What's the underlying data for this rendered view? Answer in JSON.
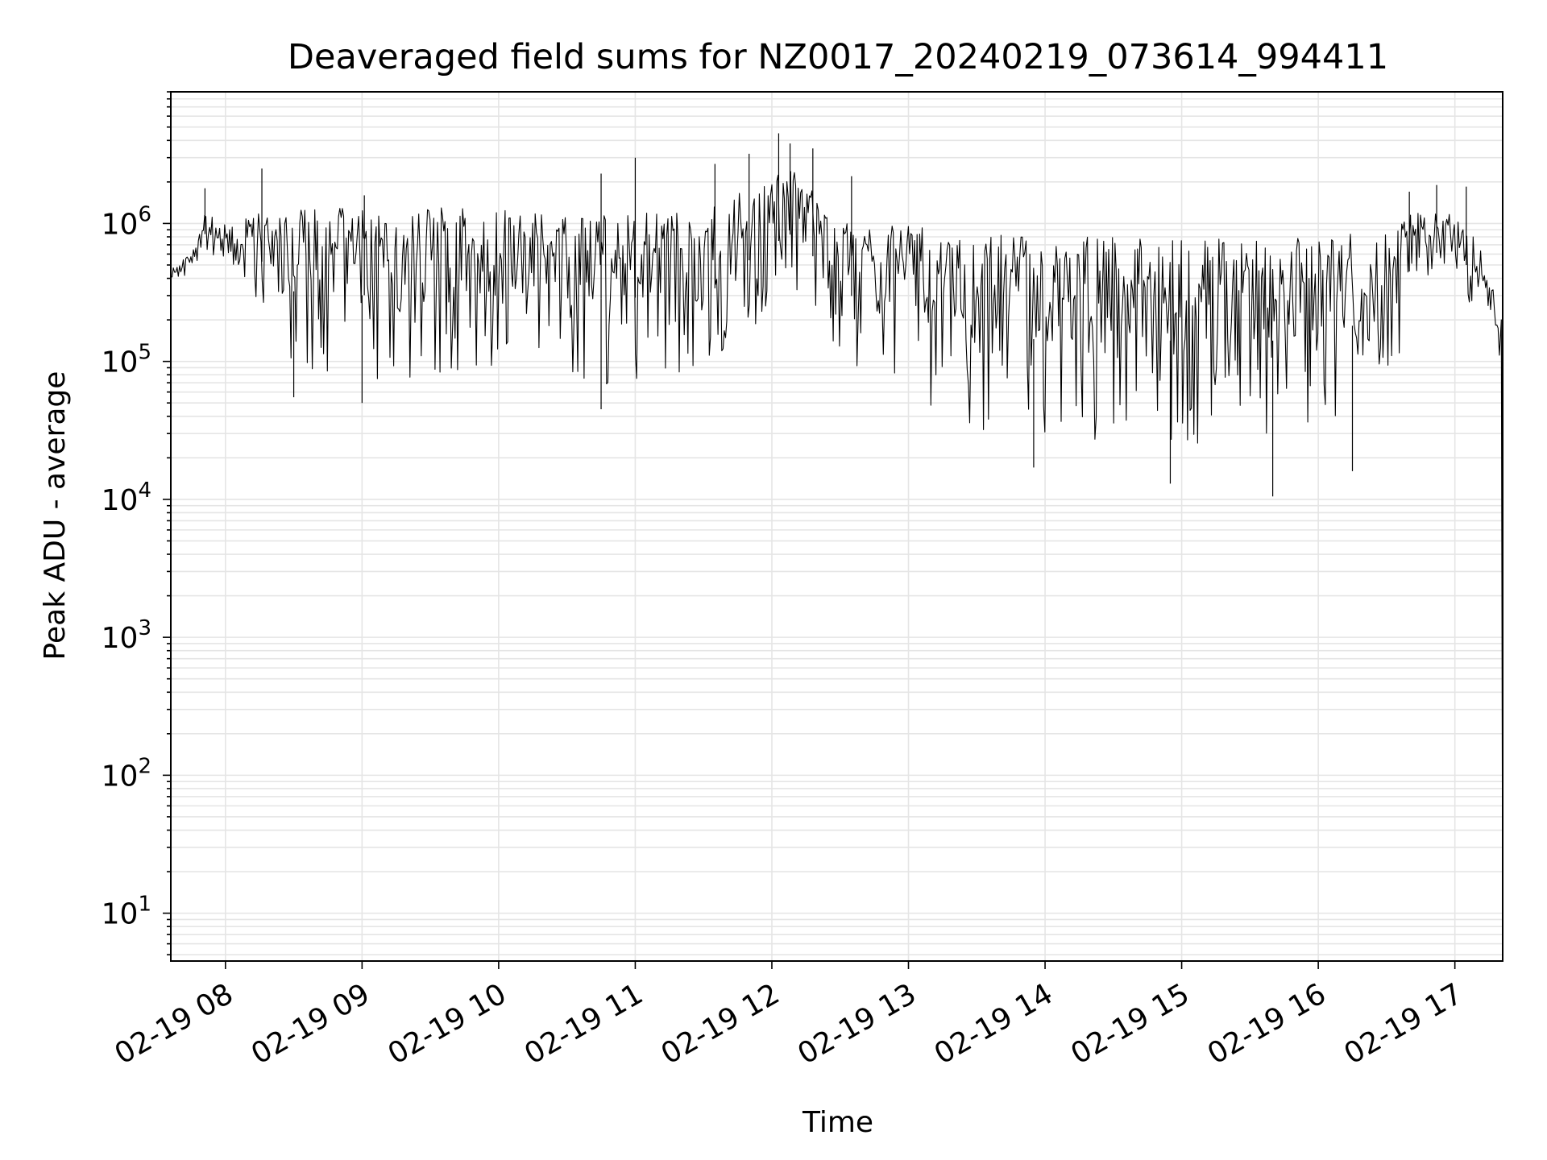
{
  "chart_data": {
    "type": "line",
    "title": "Deaveraged field sums for NZ0017_20240219_073614_994411",
    "xlabel": "Time",
    "ylabel": "Peak ADU - average",
    "yscale": "log",
    "xlim": [
      "2024-02-19 07:36",
      "2024-02-19 17:21"
    ],
    "ylim": [
      4.5,
      9000000
    ],
    "grid": true,
    "line_color": "#000000",
    "x_ticks": [
      {
        "time": "2024-02-19 08:00",
        "label": "02-19 08"
      },
      {
        "time": "2024-02-19 09:00",
        "label": "02-19 09"
      },
      {
        "time": "2024-02-19 10:00",
        "label": "02-19 10"
      },
      {
        "time": "2024-02-19 11:00",
        "label": "02-19 11"
      },
      {
        "time": "2024-02-19 12:00",
        "label": "02-19 12"
      },
      {
        "time": "2024-02-19 13:00",
        "label": "02-19 13"
      },
      {
        "time": "2024-02-19 14:00",
        "label": "02-19 14"
      },
      {
        "time": "2024-02-19 15:00",
        "label": "02-19 15"
      },
      {
        "time": "2024-02-19 16:00",
        "label": "02-19 16"
      },
      {
        "time": "2024-02-19 17:00",
        "label": "02-19 17"
      }
    ],
    "y_ticks": [
      {
        "value": 10,
        "base": "10",
        "exp": "1"
      },
      {
        "value": 100,
        "base": "10",
        "exp": "2"
      },
      {
        "value": 1000,
        "base": "10",
        "exp": "3"
      },
      {
        "value": 10000,
        "base": "10",
        "exp": "4"
      },
      {
        "value": 100000,
        "base": "10",
        "exp": "5"
      },
      {
        "value": 1000000,
        "base": "10",
        "exp": "6"
      }
    ],
    "series": [
      {
        "band": [
          {
            "time": "2024-02-19 07:36",
            "low": 350000,
            "high": 500000
          },
          {
            "time": "2024-02-19 07:45",
            "low": 450000,
            "high": 600000
          },
          {
            "time": "2024-02-19 07:50",
            "low": 600000,
            "high": 1200000
          },
          {
            "time": "2024-02-19 08:00",
            "low": 550000,
            "high": 1000000
          },
          {
            "time": "2024-02-19 08:15",
            "low": 250000,
            "high": 1200000
          },
          {
            "time": "2024-02-19 08:30",
            "low": 80000,
            "high": 1300000
          },
          {
            "time": "2024-02-19 09:00",
            "low": 70000,
            "high": 1300000
          },
          {
            "time": "2024-02-19 09:30",
            "low": 75000,
            "high": 1300000
          },
          {
            "time": "2024-02-19 10:00",
            "low": 70000,
            "high": 1300000
          },
          {
            "time": "2024-02-19 10:30",
            "low": 65000,
            "high": 1200000
          },
          {
            "time": "2024-02-19 11:00",
            "low": 70000,
            "high": 1200000
          },
          {
            "time": "2024-02-19 11:30",
            "low": 70000,
            "high": 1200000
          },
          {
            "time": "2024-02-19 11:55",
            "low": 200000,
            "high": 2000000
          },
          {
            "time": "2024-02-19 12:10",
            "low": 300000,
            "high": 2500000
          },
          {
            "time": "2024-02-19 12:30",
            "low": 100000,
            "high": 1000000
          },
          {
            "time": "2024-02-19 13:00",
            "low": 50000,
            "high": 1000000
          },
          {
            "time": "2024-02-19 13:30",
            "low": 30000,
            "high": 900000
          },
          {
            "time": "2024-02-19 14:00",
            "low": 25000,
            "high": 800000
          },
          {
            "time": "2024-02-19 14:30",
            "low": 25000,
            "high": 800000
          },
          {
            "time": "2024-02-19 15:00",
            "low": 25000,
            "high": 800000
          },
          {
            "time": "2024-02-19 15:30",
            "low": 25000,
            "high": 800000
          },
          {
            "time": "2024-02-19 16:00",
            "low": 25000,
            "high": 800000
          },
          {
            "time": "2024-02-19 16:30",
            "low": 60000,
            "high": 900000
          },
          {
            "time": "2024-02-19 16:45",
            "low": 300000,
            "high": 1300000
          },
          {
            "time": "2024-02-19 17:00",
            "low": 300000,
            "high": 1200000
          },
          {
            "time": "2024-02-19 17:15",
            "low": 200000,
            "high": 600000
          },
          {
            "time": "2024-02-19 17:19",
            "low": 100000,
            "high": 200000
          },
          {
            "time": "2024-02-19 17:21",
            "low": 5,
            "high": 100000
          }
        ],
        "peaks": [
          {
            "time": "2024-02-19 07:51",
            "value": 1800000
          },
          {
            "time": "2024-02-19 08:16",
            "value": 2500000
          },
          {
            "time": "2024-02-19 09:01",
            "value": 1600000
          },
          {
            "time": "2024-02-19 10:45",
            "value": 2300000
          },
          {
            "time": "2024-02-19 11:00",
            "value": 3000000
          },
          {
            "time": "2024-02-19 11:35",
            "value": 2700000
          },
          {
            "time": "2024-02-19 11:50",
            "value": 3200000
          },
          {
            "time": "2024-02-19 12:03",
            "value": 4500000
          },
          {
            "time": "2024-02-19 12:08",
            "value": 3800000
          },
          {
            "time": "2024-02-19 12:18",
            "value": 3500000
          },
          {
            "time": "2024-02-19 12:35",
            "value": 2200000
          },
          {
            "time": "2024-02-19 16:40",
            "value": 1700000
          },
          {
            "time": "2024-02-19 16:52",
            "value": 1900000
          },
          {
            "time": "2024-02-19 17:05",
            "value": 1850000
          }
        ],
        "dips": [
          {
            "time": "2024-02-19 08:30",
            "value": 55000
          },
          {
            "time": "2024-02-19 09:00",
            "value": 50000
          },
          {
            "time": "2024-02-19 10:45",
            "value": 45000
          },
          {
            "time": "2024-02-19 13:55",
            "value": 17000
          },
          {
            "time": "2024-02-19 14:55",
            "value": 13000
          },
          {
            "time": "2024-02-19 15:40",
            "value": 10500
          },
          {
            "time": "2024-02-19 16:15",
            "value": 16000
          }
        ]
      }
    ]
  }
}
